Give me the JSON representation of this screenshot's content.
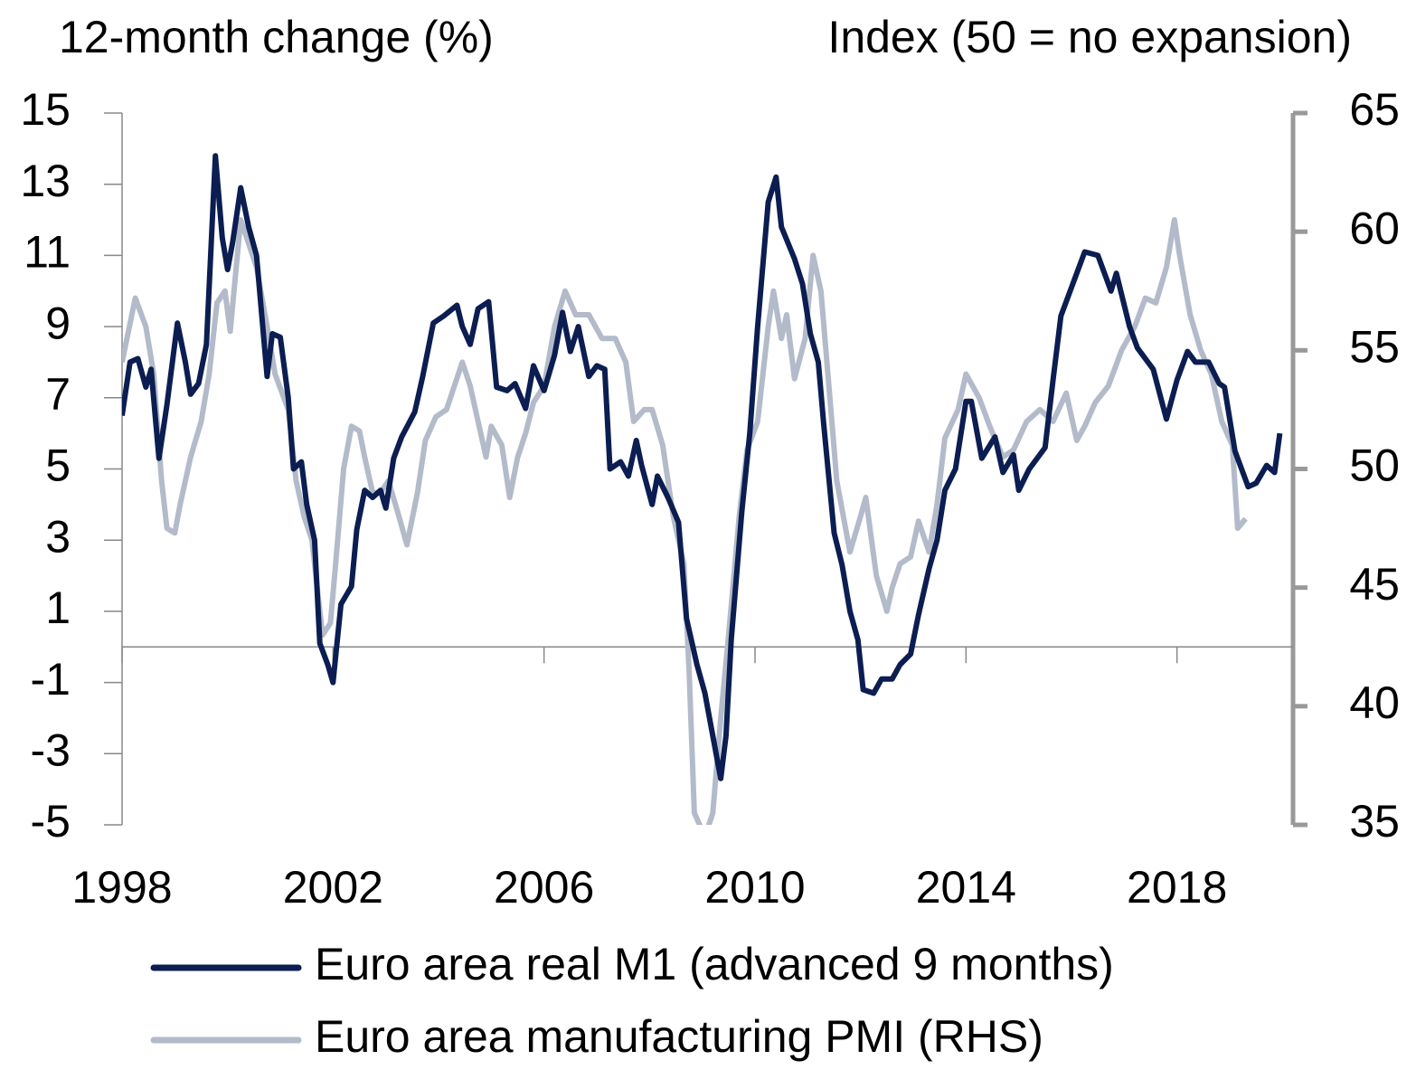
{
  "chart_data": {
    "type": "line",
    "y_label": "12-month change (%)",
    "y2_label": "Index (50 = no expansion)",
    "xlim": [
      1998,
      2020.2
    ],
    "xticks": [
      1998,
      2002,
      2006,
      2010,
      2014,
      2018
    ],
    "ylim": [
      -5,
      15
    ],
    "yticks": [
      -5,
      -3,
      -1,
      1,
      3,
      5,
      7,
      9,
      11,
      13,
      15
    ],
    "y2lim": [
      35,
      65
    ],
    "y2ticks": [
      35,
      40,
      45,
      50,
      55,
      60,
      65
    ],
    "series": [
      {
        "name": "Euro area real M1 (advanced 9 months)",
        "color": "#0b1d51",
        "x": [
          1998.0,
          1998.15,
          1998.3,
          1998.45,
          1998.55,
          1998.7,
          1998.85,
          1999.05,
          1999.2,
          1999.3,
          1999.45,
          1999.6,
          1999.77,
          1999.9,
          2000.0,
          2000.1,
          2000.25,
          2000.4,
          2000.55,
          2000.75,
          2000.85,
          2001.0,
          2001.15,
          2001.25,
          2001.4,
          2001.5,
          2001.65,
          2001.75,
          2001.9,
          2002.0,
          2002.15,
          2002.35,
          2002.45,
          2002.6,
          2002.75,
          2002.9,
          2003.0,
          2003.15,
          2003.3,
          2003.55,
          2003.7,
          2003.9,
          2004.1,
          2004.35,
          2004.45,
          2004.6,
          2004.75,
          2004.95,
          2005.1,
          2005.3,
          2005.45,
          2005.65,
          2005.8,
          2006.0,
          2006.2,
          2006.35,
          2006.5,
          2006.65,
          2006.85,
          2007.0,
          2007.15,
          2007.25,
          2007.45,
          2007.6,
          2007.75,
          2007.85,
          2008.05,
          2008.15,
          2008.35,
          2008.55,
          2008.7,
          2008.9,
          2009.05,
          2009.2,
          2009.35,
          2009.45,
          2009.55,
          2009.75,
          2009.9,
          2010.05,
          2010.25,
          2010.4,
          2010.5,
          2010.75,
          2010.9,
          2011.05,
          2011.2,
          2011.3,
          2011.5,
          2011.65,
          2011.8,
          2011.95,
          2012.05,
          2012.25,
          2012.4,
          2012.6,
          2012.75,
          2012.95,
          2013.1,
          2013.3,
          2013.45,
          2013.6,
          2013.8,
          2014.0,
          2014.1,
          2014.3,
          2014.55,
          2014.7,
          2014.9,
          2015.0,
          2015.2,
          2015.5,
          2015.65,
          2015.8,
          2016.0,
          2016.25,
          2016.5,
          2016.75,
          2016.85,
          2017.1,
          2017.25,
          2017.55,
          2017.8,
          2018.0,
          2018.2,
          2018.35,
          2018.6,
          2018.8,
          2018.9,
          2019.1,
          2019.35,
          2019.5,
          2019.7,
          2019.85,
          2019.95
        ],
        "values": [
          6.5,
          8.0,
          8.1,
          7.3,
          7.8,
          5.3,
          6.8,
          9.1,
          8.0,
          7.1,
          7.4,
          8.5,
          13.8,
          11.5,
          10.6,
          11.4,
          12.9,
          11.8,
          11.0,
          7.6,
          8.8,
          8.7,
          7.0,
          5.0,
          5.2,
          4.0,
          3.0,
          0.1,
          -0.5,
          -1.0,
          1.2,
          1.7,
          3.3,
          4.4,
          4.2,
          4.4,
          3.9,
          5.3,
          5.9,
          6.6,
          7.6,
          9.1,
          9.3,
          9.6,
          9.0,
          8.5,
          9.5,
          9.7,
          7.3,
          7.2,
          7.4,
          6.7,
          7.9,
          7.2,
          8.2,
          9.4,
          8.3,
          9.0,
          7.6,
          7.9,
          7.8,
          5.0,
          5.2,
          4.8,
          5.8,
          5.1,
          4.0,
          4.8,
          4.2,
          3.5,
          0.8,
          -0.5,
          -1.3,
          -2.5,
          -3.7,
          -2.5,
          0.2,
          3.8,
          6.0,
          9.0,
          12.5,
          13.2,
          11.8,
          10.9,
          10.2,
          8.8,
          8.0,
          6.3,
          3.2,
          2.3,
          1.0,
          0.2,
          -1.2,
          -1.3,
          -0.9,
          -0.9,
          -0.5,
          -0.2,
          0.9,
          2.2,
          3.0,
          4.4,
          5.0,
          6.9,
          6.9,
          5.3,
          5.9,
          4.9,
          5.4,
          4.4,
          5.0,
          5.6,
          7.5,
          9.3,
          10.1,
          11.1,
          11.0,
          10.0,
          10.5,
          9.0,
          8.4,
          7.8,
          6.4,
          7.5,
          8.3,
          8.0,
          8.0,
          7.4,
          7.3,
          5.5,
          4.5,
          4.6,
          5.1,
          4.9,
          6.0
        ]
      },
      {
        "name": "Euro area manufacturing PMI (RHS)",
        "color": "#b3bac9",
        "axis": "y2",
        "x": [
          1998.0,
          1998.25,
          1998.45,
          1998.6,
          1998.75,
          1998.85,
          1999.0,
          1999.1,
          1999.3,
          1999.5,
          1999.65,
          1999.8,
          1999.95,
          2000.05,
          2000.25,
          2000.4,
          2000.55,
          2000.75,
          2000.9,
          2001.15,
          2001.3,
          2001.45,
          2001.6,
          2001.7,
          2001.8,
          2001.95,
          2002.05,
          2002.2,
          2002.35,
          2002.5,
          2002.6,
          2002.75,
          2002.9,
          2003.05,
          2003.25,
          2003.4,
          2003.6,
          2003.75,
          2003.95,
          2004.15,
          2004.3,
          2004.45,
          2004.6,
          2004.75,
          2004.9,
          2005.0,
          2005.2,
          2005.35,
          2005.5,
          2005.65,
          2005.8,
          2006.0,
          2006.2,
          2006.4,
          2006.6,
          2006.85,
          2007.1,
          2007.35,
          2007.55,
          2007.7,
          2007.9,
          2008.05,
          2008.25,
          2008.45,
          2008.65,
          2008.75,
          2008.85,
          2009.05,
          2009.2,
          2009.35,
          2009.5,
          2009.7,
          2009.85,
          2010.05,
          2010.25,
          2010.35,
          2010.5,
          2010.6,
          2010.75,
          2010.95,
          2011.1,
          2011.25,
          2011.4,
          2011.55,
          2011.8,
          2012.0,
          2012.1,
          2012.3,
          2012.5,
          2012.6,
          2012.75,
          2012.95,
          2013.1,
          2013.3,
          2013.45,
          2013.6,
          2013.85,
          2014.0,
          2014.25,
          2014.45,
          2014.7,
          2014.9,
          2015.15,
          2015.4,
          2015.65,
          2015.9,
          2016.1,
          2016.25,
          2016.45,
          2016.7,
          2016.95,
          2017.2,
          2017.4,
          2017.6,
          2017.8,
          2017.95,
          2018.05,
          2018.25,
          2018.45,
          2018.65,
          2018.85,
          2019.05,
          2019.15,
          2019.3
        ],
        "values": [
          54.5,
          57.2,
          56.0,
          54.0,
          49.5,
          47.5,
          47.3,
          48.5,
          50.5,
          52.0,
          54.0,
          57.0,
          57.5,
          55.8,
          60.5,
          59.5,
          58.5,
          56.0,
          54.0,
          52.5,
          49.5,
          48.0,
          47.0,
          45.0,
          43.0,
          43.5,
          46.0,
          50.0,
          51.8,
          51.6,
          50.5,
          49.0,
          49.0,
          49.5,
          48.0,
          46.8,
          49.0,
          51.2,
          52.2,
          52.5,
          53.5,
          54.5,
          53.5,
          52.0,
          50.5,
          51.8,
          51.0,
          48.8,
          50.5,
          51.5,
          52.8,
          53.5,
          56.0,
          57.5,
          56.5,
          56.5,
          55.5,
          55.5,
          54.5,
          52.0,
          52.5,
          52.5,
          51.0,
          48.0,
          46.0,
          41.5,
          35.5,
          34.5,
          35.5,
          39.5,
          43.0,
          48.0,
          50.8,
          52.0,
          56.0,
          57.5,
          55.5,
          56.5,
          53.8,
          55.5,
          59.0,
          57.5,
          53.5,
          49.5,
          46.5,
          48.0,
          48.8,
          45.5,
          44.0,
          45.0,
          46.0,
          46.3,
          47.8,
          46.5,
          48.5,
          51.3,
          52.5,
          54.0,
          53.0,
          51.8,
          50.5,
          50.8,
          52.0,
          52.5,
          52.0,
          53.2,
          51.2,
          51.8,
          52.8,
          53.5,
          55.0,
          56.0,
          57.2,
          57.0,
          58.5,
          60.5,
          59.0,
          56.5,
          55.0,
          54.0,
          52.0,
          51.0,
          47.5,
          47.9
        ]
      }
    ]
  }
}
